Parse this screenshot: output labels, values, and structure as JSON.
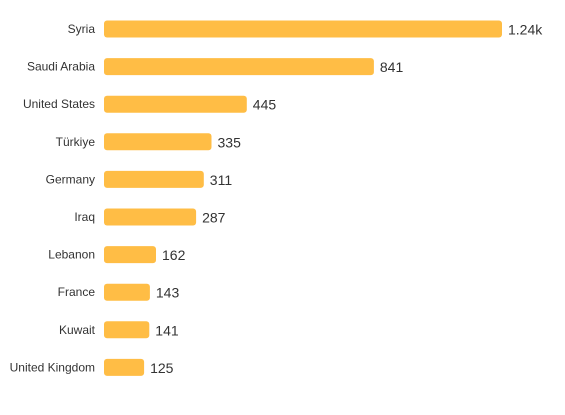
{
  "chart_data": {
    "type": "bar",
    "orientation": "horizontal",
    "categories": [
      "Syria",
      "Saudi Arabia",
      "United States",
      "Türkiye",
      "Germany",
      "Iraq",
      "Lebanon",
      "France",
      "Kuwait",
      "United Kingdom"
    ],
    "values": [
      1240,
      841,
      445,
      335,
      311,
      287,
      162,
      143,
      141,
      125
    ],
    "value_labels": [
      "1.24k",
      "841",
      "445",
      "335",
      "311",
      "287",
      "162",
      "143",
      "141",
      "125"
    ],
    "title": "",
    "xlabel": "",
    "ylabel": "",
    "xlim": [
      0,
      1240
    ],
    "grid": false,
    "legend": "none",
    "bar_color": "#FFBD45"
  }
}
